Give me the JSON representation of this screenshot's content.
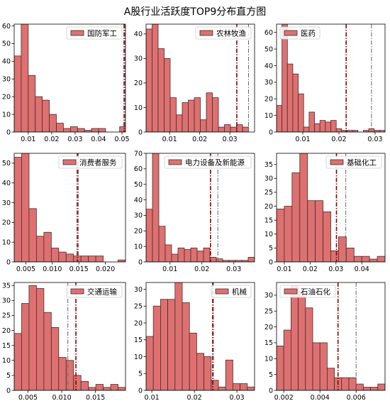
{
  "figure": {
    "title": "A股行业活跃度TOP9分布直方图"
  },
  "colors": {
    "bar": "#e07070",
    "edge": "#333333",
    "line_red": "#8b0000",
    "line_gray": "#666666"
  },
  "chart_data": [
    {
      "type": "bar",
      "title": "",
      "legend": "国防军工",
      "legend_placement": "top-right",
      "x": [
        0.0055,
        0.0085,
        0.0115,
        0.0145,
        0.0175,
        0.0205,
        0.0235,
        0.0265,
        0.0295,
        0.0325,
        0.0355,
        0.0385,
        0.0415,
        0.0445,
        0.0475,
        0.0505
      ],
      "values": [
        43,
        61,
        32,
        20,
        18,
        10,
        5,
        2,
        3,
        2,
        1,
        2,
        2,
        0,
        0,
        3
      ],
      "xlim": [
        0.004,
        0.0515
      ],
      "ylim": [
        0,
        61
      ],
      "xticks": [
        0.01,
        0.02,
        0.03,
        0.04,
        0.05
      ],
      "xtick_labels": [
        "0.01",
        "0.02",
        "0.03",
        "0.04",
        "0.05"
      ],
      "yticks": [
        0,
        10,
        20,
        30,
        40,
        50,
        60
      ],
      "ytick_labels": [
        "0",
        "10",
        "20",
        "30",
        "40",
        "50",
        "60"
      ],
      "vlines": [
        {
          "x": 0.0509,
          "style": "red"
        },
        {
          "x": 0.0513,
          "style": "gray"
        }
      ]
    },
    {
      "type": "bar",
      "title": "",
      "legend": "农林牧渔",
      "legend_placement": "top-right",
      "x": [
        0.0032,
        0.0052,
        0.0072,
        0.0092,
        0.0112,
        0.0132,
        0.0152,
        0.0172,
        0.0192,
        0.0212,
        0.0232,
        0.0252,
        0.0272,
        0.0292,
        0.0312,
        0.0332,
        0.0352,
        0.0372
      ],
      "values": [
        42,
        44,
        34,
        30,
        14,
        7,
        12,
        13,
        14,
        5,
        16,
        14,
        2,
        3,
        2,
        3,
        2,
        0
      ],
      "xlim": [
        0.0022,
        0.0382
      ],
      "ylim": [
        0,
        44
      ],
      "xticks": [
        0.01,
        0.02,
        0.03
      ],
      "xtick_labels": [
        "0.01",
        "0.02",
        "0.03"
      ],
      "yticks": [
        0,
        10,
        20,
        30,
        40
      ],
      "ytick_labels": [
        "0",
        "10",
        "20",
        "30",
        "40"
      ],
      "vlines": [
        {
          "x": 0.0323,
          "style": "red"
        },
        {
          "x": 0.0362,
          "style": "gray"
        }
      ]
    },
    {
      "type": "bar",
      "title": "",
      "legend": "医药",
      "legend_placement": "top-left",
      "x": [
        0.0035,
        0.005,
        0.0065,
        0.008,
        0.0095,
        0.011,
        0.0125,
        0.014,
        0.0155,
        0.017,
        0.0185,
        0.02,
        0.0215,
        0.023,
        0.0245,
        0.026,
        0.0275,
        0.029,
        0.0305,
        0.032
      ],
      "values": [
        16,
        65,
        41,
        35,
        23,
        3,
        12,
        5,
        7,
        6,
        7,
        2,
        1,
        1,
        1,
        0,
        1,
        2,
        1,
        1
      ],
      "xlim": [
        0.00275,
        0.03275
      ],
      "ylim": [
        0,
        65
      ],
      "xticks": [
        0.01,
        0.02,
        0.03
      ],
      "xtick_labels": [
        "0.01",
        "0.02",
        "0.03"
      ],
      "yticks": [
        0,
        10,
        20,
        30,
        40,
        50,
        60
      ],
      "ytick_labels": [
        "0",
        "10",
        "20",
        "30",
        "40",
        "50",
        "60"
      ],
      "vlines": [
        {
          "x": 0.022,
          "style": "red"
        },
        {
          "x": 0.029,
          "style": "gray"
        }
      ]
    },
    {
      "type": "bar",
      "title": "",
      "legend": "消费者服务",
      "legend_placement": "top-right",
      "x": [
        0.0035,
        0.0049,
        0.0063,
        0.0077,
        0.0091,
        0.0105,
        0.0119,
        0.0133,
        0.0147,
        0.0161,
        0.0175,
        0.0189,
        0.0203,
        0.0217,
        0.0231
      ],
      "values": [
        53,
        55,
        27,
        13,
        15,
        7,
        5,
        4,
        3,
        3,
        3,
        3,
        0,
        0,
        1
      ],
      "xlim": [
        0.0028,
        0.0238
      ],
      "ylim": [
        0,
        55
      ],
      "xticks": [
        0.005,
        0.01,
        0.015,
        0.02
      ],
      "xtick_labels": [
        "0.005",
        "0.010",
        "0.015",
        "0.020"
      ],
      "yticks": [
        0,
        10,
        20,
        30,
        40,
        50
      ],
      "ytick_labels": [
        "0",
        "10",
        "20",
        "30",
        "40",
        "50"
      ],
      "vlines": [
        {
          "x": 0.0147,
          "style": "red"
        },
        {
          "x": 0.0149,
          "style": "gray"
        }
      ]
    },
    {
      "type": "bar",
      "title": "",
      "legend": "电力设备及新能源",
      "legend_placement": "top-right",
      "x": [
        0.0035,
        0.0055,
        0.0075,
        0.0095,
        0.0115,
        0.0135,
        0.0155,
        0.0175,
        0.0195,
        0.0215,
        0.0235,
        0.0255,
        0.0275,
        0.0295,
        0.0315,
        0.0335,
        0.0355
      ],
      "values": [
        34,
        70,
        23,
        11,
        5,
        9,
        8,
        9,
        7,
        9,
        3,
        2,
        1,
        1,
        1,
        1,
        3
      ],
      "xlim": [
        0.0025,
        0.0365
      ],
      "ylim": [
        0,
        70
      ],
      "xticks": [
        0.01,
        0.02,
        0.03
      ],
      "xtick_labels": [
        "0.01",
        "0.02",
        "0.03"
      ],
      "yticks": [
        0,
        10,
        20,
        30,
        40,
        50,
        60,
        70
      ],
      "ytick_labels": [
        "0",
        "10",
        "20",
        "30",
        "40",
        "50",
        "60",
        "70"
      ],
      "vlines": [
        {
          "x": 0.0227,
          "style": "red"
        },
        {
          "x": 0.025,
          "style": "gray"
        }
      ]
    },
    {
      "type": "bar",
      "title": "",
      "legend": "基础化工",
      "legend_placement": "top-right",
      "x": [
        0.0085,
        0.0115,
        0.0145,
        0.0175,
        0.0205,
        0.0235,
        0.0265,
        0.0295,
        0.0325,
        0.0355,
        0.0385,
        0.0415,
        0.0445,
        0.0475
      ],
      "values": [
        19,
        20,
        32,
        39,
        22,
        22,
        18,
        4,
        9,
        5,
        2,
        2,
        1,
        2
      ],
      "xlim": [
        0.007,
        0.049
      ],
      "ylim": [
        0,
        39
      ],
      "xticks": [
        0.01,
        0.02,
        0.03,
        0.04
      ],
      "xtick_labels": [
        "0.01",
        "0.02",
        "0.03",
        "0.04"
      ],
      "yticks": [
        0,
        5,
        10,
        15,
        20,
        25,
        30,
        35
      ],
      "ytick_labels": [
        "0",
        "5",
        "10",
        "15",
        "20",
        "25",
        "30",
        "35"
      ],
      "vlines": [
        {
          "x": 0.0302,
          "style": "red"
        },
        {
          "x": 0.0338,
          "style": "gray"
        }
      ]
    },
    {
      "type": "bar",
      "title": "",
      "legend": "交通运输",
      "legend_placement": "top-right",
      "x": [
        0.0035,
        0.0046,
        0.0057,
        0.0068,
        0.0079,
        0.009,
        0.0101,
        0.0112,
        0.0123,
        0.0134,
        0.0145,
        0.0156,
        0.0167,
        0.0178,
        0.0189
      ],
      "values": [
        19,
        29,
        35,
        34,
        26,
        21,
        11,
        10,
        5,
        3,
        1,
        2,
        1,
        2,
        1
      ],
      "xlim": [
        0.00295,
        0.01945
      ],
      "ylim": [
        0,
        36
      ],
      "xticks": [
        0.005,
        0.01,
        0.015
      ],
      "xtick_labels": [
        "0.005",
        "0.010",
        "0.015"
      ],
      "yticks": [
        0,
        5,
        10,
        15,
        20,
        25,
        30,
        35
      ],
      "ytick_labels": [
        "0",
        "5",
        "10",
        "15",
        "20",
        "25",
        "30",
        "35"
      ],
      "vlines": [
        {
          "x": 0.0109,
          "style": "gray"
        },
        {
          "x": 0.0121,
          "style": "red"
        }
      ]
    },
    {
      "type": "bar",
      "title": "",
      "legend": "机械",
      "legend_placement": "top-right",
      "x": [
        0.0095,
        0.0112,
        0.0129,
        0.0146,
        0.0163,
        0.018,
        0.0197,
        0.0214,
        0.0231,
        0.0248,
        0.0265,
        0.0282,
        0.0299,
        0.0316,
        0.0333
      ],
      "values": [
        16,
        25,
        27,
        27,
        32,
        26,
        17,
        11,
        10,
        3,
        1,
        9,
        2,
        2,
        1
      ],
      "xlim": [
        0.00865,
        0.03415
      ],
      "ylim": [
        0,
        32
      ],
      "xticks": [
        0.01,
        0.02,
        0.03
      ],
      "xtick_labels": [
        "0.01",
        "0.02",
        "0.03"
      ],
      "yticks": [
        0,
        5,
        10,
        15,
        20,
        25,
        30
      ],
      "ytick_labels": [
        "0",
        "5",
        "10",
        "15",
        "20",
        "25",
        "30"
      ],
      "vlines": [
        {
          "x": 0.0243,
          "style": "red"
        },
        {
          "x": 0.0245,
          "style": "gray"
        }
      ]
    },
    {
      "type": "bar",
      "title": "",
      "legend": "石油石化",
      "legend_placement": "top-left",
      "x": [
        0.0018,
        0.0022,
        0.0026,
        0.003,
        0.0034,
        0.0038,
        0.0042,
        0.0046,
        0.005,
        0.0054,
        0.0058,
        0.0062,
        0.0066,
        0.007,
        0.0074
      ],
      "values": [
        14,
        19,
        33,
        31,
        26,
        15,
        15,
        7,
        4,
        4,
        4,
        2,
        1,
        1,
        2
      ],
      "xlim": [
        0.0016,
        0.0076
      ],
      "ylim": [
        0,
        34
      ],
      "xticks": [
        0.002,
        0.004,
        0.006
      ],
      "xtick_labels": [
        "0.002",
        "0.004",
        "0.006"
      ],
      "yticks": [
        0,
        5,
        10,
        15,
        20,
        25,
        30
      ],
      "ytick_labels": [
        "0",
        "5",
        "10",
        "15",
        "20",
        "25",
        "30"
      ],
      "vlines": [
        {
          "x": 0.005,
          "style": "red"
        },
        {
          "x": 0.006,
          "style": "gray"
        }
      ]
    }
  ]
}
